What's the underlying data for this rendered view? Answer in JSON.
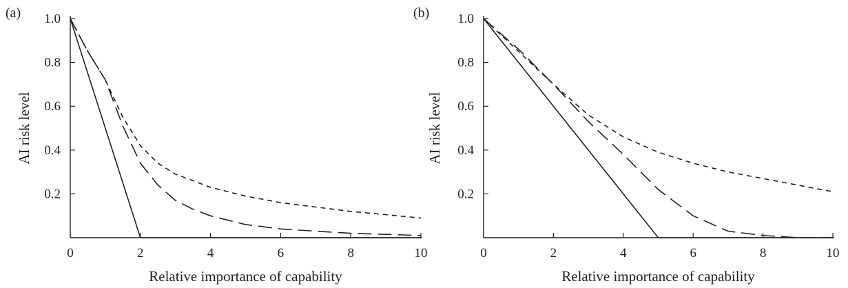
{
  "chart_data": [
    {
      "type": "line",
      "panel_label": "(a)",
      "xlabel": "Relative importance of capability",
      "ylabel": "AI risk level",
      "xlim": [
        0,
        10
      ],
      "ylim": [
        0,
        1.0
      ],
      "xticks": [
        "0",
        "2",
        "4",
        "6",
        "8",
        "10"
      ],
      "xtick_values": [
        0,
        2,
        4,
        6,
        8,
        10
      ],
      "yticks": [
        "0.2",
        "0.4",
        "0.6",
        "0.8",
        "1.0"
      ],
      "ytick_values": [
        0.2,
        0.4,
        0.6,
        0.8,
        1.0
      ],
      "grid": false,
      "series": [
        {
          "style": "solid",
          "x": [
            0,
            2,
            10
          ],
          "y": [
            1.0,
            0.0,
            0.0
          ]
        },
        {
          "style": "long-dash",
          "x": [
            0,
            0.5,
            1,
            1.5,
            2,
            2.5,
            3,
            3.5,
            4,
            5,
            6,
            7,
            8,
            9,
            10
          ],
          "y": [
            1.0,
            0.85,
            0.72,
            0.51,
            0.34,
            0.24,
            0.17,
            0.13,
            0.1,
            0.06,
            0.04,
            0.03,
            0.02,
            0.015,
            0.01
          ]
        },
        {
          "style": "short-dash",
          "x": [
            0,
            0.5,
            1,
            1.5,
            2,
            2.5,
            3,
            3.5,
            4,
            5,
            6,
            7,
            8,
            9,
            10
          ],
          "y": [
            1.0,
            0.85,
            0.72,
            0.55,
            0.42,
            0.34,
            0.29,
            0.26,
            0.23,
            0.19,
            0.16,
            0.14,
            0.12,
            0.105,
            0.09
          ]
        }
      ]
    },
    {
      "type": "line",
      "panel_label": "(b)",
      "xlabel": "Relative importance of capability",
      "ylabel": "AI risk level",
      "xlim": [
        0,
        10
      ],
      "ylim": [
        0,
        1.0
      ],
      "xticks": [
        "0",
        "2",
        "4",
        "6",
        "8",
        "10"
      ],
      "xtick_values": [
        0,
        2,
        4,
        6,
        8,
        10
      ],
      "yticks": [
        "0.2",
        "0.4",
        "0.6",
        "0.8",
        "1.0"
      ],
      "ytick_values": [
        0.2,
        0.4,
        0.6,
        0.8,
        1.0
      ],
      "grid": false,
      "series": [
        {
          "style": "solid",
          "x": [
            0,
            5,
            10
          ],
          "y": [
            1.0,
            0.0,
            0.0
          ]
        },
        {
          "style": "long-dash",
          "x": [
            0,
            1,
            2,
            3,
            4,
            5,
            6,
            7,
            8,
            9,
            10
          ],
          "y": [
            1.0,
            0.86,
            0.7,
            0.53,
            0.38,
            0.22,
            0.1,
            0.03,
            0.01,
            0.0,
            0.0
          ]
        },
        {
          "style": "short-dash",
          "x": [
            0,
            1,
            2,
            3,
            4,
            5,
            6,
            7,
            8,
            9,
            10
          ],
          "y": [
            1.0,
            0.85,
            0.7,
            0.56,
            0.46,
            0.39,
            0.34,
            0.3,
            0.27,
            0.24,
            0.21
          ]
        }
      ]
    }
  ]
}
